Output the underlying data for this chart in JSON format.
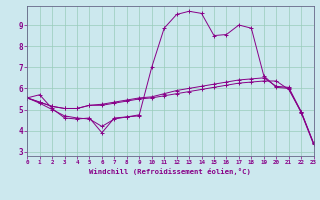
{
  "xlabel": "Windchill (Refroidissement éolien,°C)",
  "bg_color": "#cce8ee",
  "line_color": "#880088",
  "grid_color": "#99ccbb",
  "xlim": [
    0,
    23
  ],
  "ylim": [
    2.8,
    9.9
  ],
  "yticks": [
    3,
    4,
    5,
    6,
    7,
    8,
    9
  ],
  "xticks": [
    0,
    1,
    2,
    3,
    4,
    5,
    6,
    7,
    8,
    9,
    10,
    11,
    12,
    13,
    14,
    15,
    16,
    17,
    18,
    19,
    20,
    21,
    22,
    23
  ],
  "series": [
    [
      5.55,
      5.7,
      5.05,
      4.6,
      4.55,
      4.6,
      3.9,
      4.6,
      4.65,
      4.7,
      null,
      null,
      null,
      null,
      null,
      null,
      null,
      null,
      null,
      null,
      null,
      null,
      null,
      null
    ],
    [
      5.55,
      5.35,
      5.15,
      5.05,
      5.05,
      5.2,
      5.2,
      5.3,
      5.4,
      5.5,
      5.55,
      5.65,
      5.75,
      5.85,
      5.95,
      6.05,
      6.15,
      6.25,
      6.3,
      6.35,
      6.35,
      5.95,
      4.9,
      3.4
    ],
    [
      5.55,
      5.35,
      5.15,
      5.05,
      5.05,
      5.2,
      5.25,
      5.35,
      5.45,
      5.55,
      5.6,
      5.75,
      5.9,
      6.0,
      6.1,
      6.2,
      6.3,
      6.4,
      6.45,
      6.5,
      6.1,
      6.05,
      4.9,
      3.4
    ],
    [
      5.55,
      5.3,
      5.0,
      4.7,
      4.6,
      4.55,
      4.2,
      4.55,
      4.65,
      4.75,
      7.0,
      8.85,
      9.5,
      9.65,
      9.55,
      8.5,
      8.55,
      9.0,
      8.85,
      6.6,
      6.05,
      6.0,
      4.85,
      3.35
    ]
  ]
}
